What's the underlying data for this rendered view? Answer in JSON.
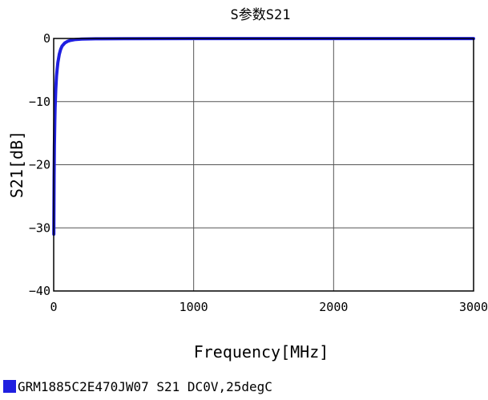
{
  "chart_data": {
    "type": "line",
    "title": "S参数S21",
    "xlabel": "Frequency[MHz]",
    "ylabel": "S21[dB]",
    "xlim": [
      0,
      3000
    ],
    "ylim": [
      -40,
      0
    ],
    "x_ticks": [
      0,
      1000,
      2000,
      3000
    ],
    "y_ticks": [
      0,
      -10,
      -20,
      -30,
      -40
    ],
    "x_tick_labels": [
      "0",
      "1000",
      "2000",
      "3000"
    ],
    "y_tick_labels": [
      "0",
      "−10",
      "−20",
      "−30",
      "−40"
    ],
    "grid": true,
    "legend_position": "bottom-left",
    "series": [
      {
        "name": "GRM1885C2E470JW07 S21 DC0V,25degC",
        "color": "#1f1fe0",
        "x": [
          1,
          3,
          5,
          8,
          10,
          15,
          20,
          25,
          30,
          40,
          50,
          60,
          80,
          100,
          120,
          150,
          200,
          300,
          500,
          1000,
          1500,
          2000,
          2500,
          3000
        ],
        "y": [
          -31,
          -22,
          -17,
          -13,
          -11,
          -8,
          -6,
          -4.8,
          -3.8,
          -2.5,
          -1.7,
          -1.2,
          -0.7,
          -0.45,
          -0.3,
          -0.18,
          -0.1,
          -0.05,
          -0.03,
          -0.02,
          -0.02,
          -0.02,
          -0.02,
          -0.02
        ]
      }
    ]
  }
}
